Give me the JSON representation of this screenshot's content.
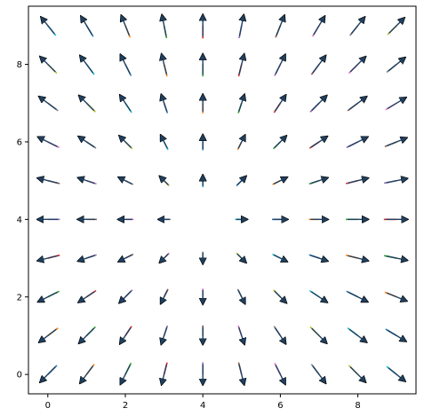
{
  "chart_data": {
    "type": "quiver",
    "title": "",
    "xlabel": "",
    "ylabel": "",
    "xlim": [
      -0.5,
      9.5
    ],
    "ylim": [
      -0.5,
      9.5
    ],
    "x_ticks": [
      "0",
      "2",
      "4",
      "6",
      "8"
    ],
    "y_ticks": [
      "0",
      "2",
      "4",
      "6",
      "8"
    ],
    "grid": false,
    "legend": "none",
    "arrow_face_color": "#1f3f5f",
    "arrow_edge_color": "#000000",
    "center": [
      4,
      4
    ],
    "x": [
      0,
      1,
      2,
      3,
      4,
      5,
      6,
      7,
      8,
      9
    ],
    "y": [
      0,
      1,
      2,
      3,
      4,
      5,
      6,
      7,
      8,
      9
    ],
    "field": "unit arrows pointing from (x, y) back toward the center (4, 4) with a reversed direction so arrows point outward from origin-like pivot; tail segments colored by row/column group",
    "segment_palette": [
      "#1f77b4",
      "#ff7f0e",
      "#2ca02c",
      "#d62728",
      "#9467bd",
      "#8c564b",
      "#e377c2",
      "#7f7f7f",
      "#bcbd22",
      "#17becf"
    ]
  }
}
